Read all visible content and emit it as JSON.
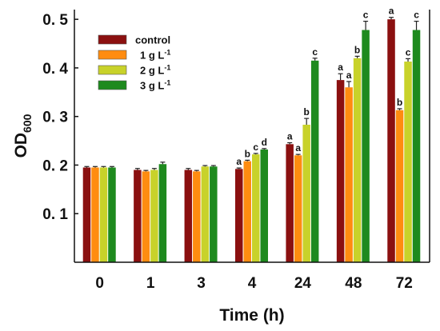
{
  "chart_data": {
    "type": "bar",
    "xlabel": "Time (h)",
    "ylabel": {
      "main": "OD",
      "sub": "600"
    },
    "ylim": [
      0,
      0.52
    ],
    "yticks": [
      {
        "value": 0.1,
        "label": "0. 1"
      },
      {
        "value": 0.2,
        "label": "0. 2"
      },
      {
        "value": 0.3,
        "label": "0. 3"
      },
      {
        "value": 0.4,
        "label": "0. 4"
      },
      {
        "value": 0.5,
        "label": "0. 5"
      }
    ],
    "categories": [
      "0",
      "1",
      "3",
      "4",
      "24",
      "48",
      "72"
    ],
    "legend_position": "top-left",
    "series": [
      {
        "name": "control",
        "legend": {
          "main": "control",
          "sup": ""
        },
        "color": "#8B1010",
        "values": [
          0.195,
          0.19,
          0.19,
          0.192,
          0.243,
          0.375,
          0.5
        ],
        "errors": [
          0.002,
          0.003,
          0.003,
          0.002,
          0.003,
          0.013,
          0.004
        ],
        "labels": [
          "",
          "",
          "",
          "a",
          "a",
          "a",
          "a"
        ]
      },
      {
        "name": "1 g L-1",
        "legend": {
          "main": "1 g L",
          "sup": "-1"
        },
        "color": "#FF8C10",
        "values": [
          0.195,
          0.187,
          0.187,
          0.208,
          0.22,
          0.36,
          0.313
        ],
        "errors": [
          0.002,
          0.002,
          0.002,
          0.002,
          0.002,
          0.012,
          0.003
        ],
        "labels": [
          "",
          "",
          "",
          "b",
          "a",
          "a",
          "b"
        ]
      },
      {
        "name": "2 g L-1",
        "legend": {
          "main": "2 g L",
          "sup": "-1"
        },
        "color": "#C8D22A",
        "values": [
          0.195,
          0.19,
          0.197,
          0.222,
          0.283,
          0.42,
          0.413
        ],
        "errors": [
          0.002,
          0.003,
          0.002,
          0.002,
          0.013,
          0.004,
          0.006
        ],
        "labels": [
          "",
          "",
          "",
          "c",
          "b",
          "b",
          "c"
        ]
      },
      {
        "name": "3 g L-1",
        "legend": {
          "main": "3 g L",
          "sup": "-1"
        },
        "color": "#1E8A1E",
        "values": [
          0.195,
          0.202,
          0.197,
          0.232,
          0.415,
          0.478,
          0.478
        ],
        "errors": [
          0.002,
          0.004,
          0.002,
          0.002,
          0.005,
          0.018,
          0.018
        ],
        "labels": [
          "",
          "",
          "",
          "d",
          "c",
          "c",
          "c"
        ]
      }
    ]
  }
}
